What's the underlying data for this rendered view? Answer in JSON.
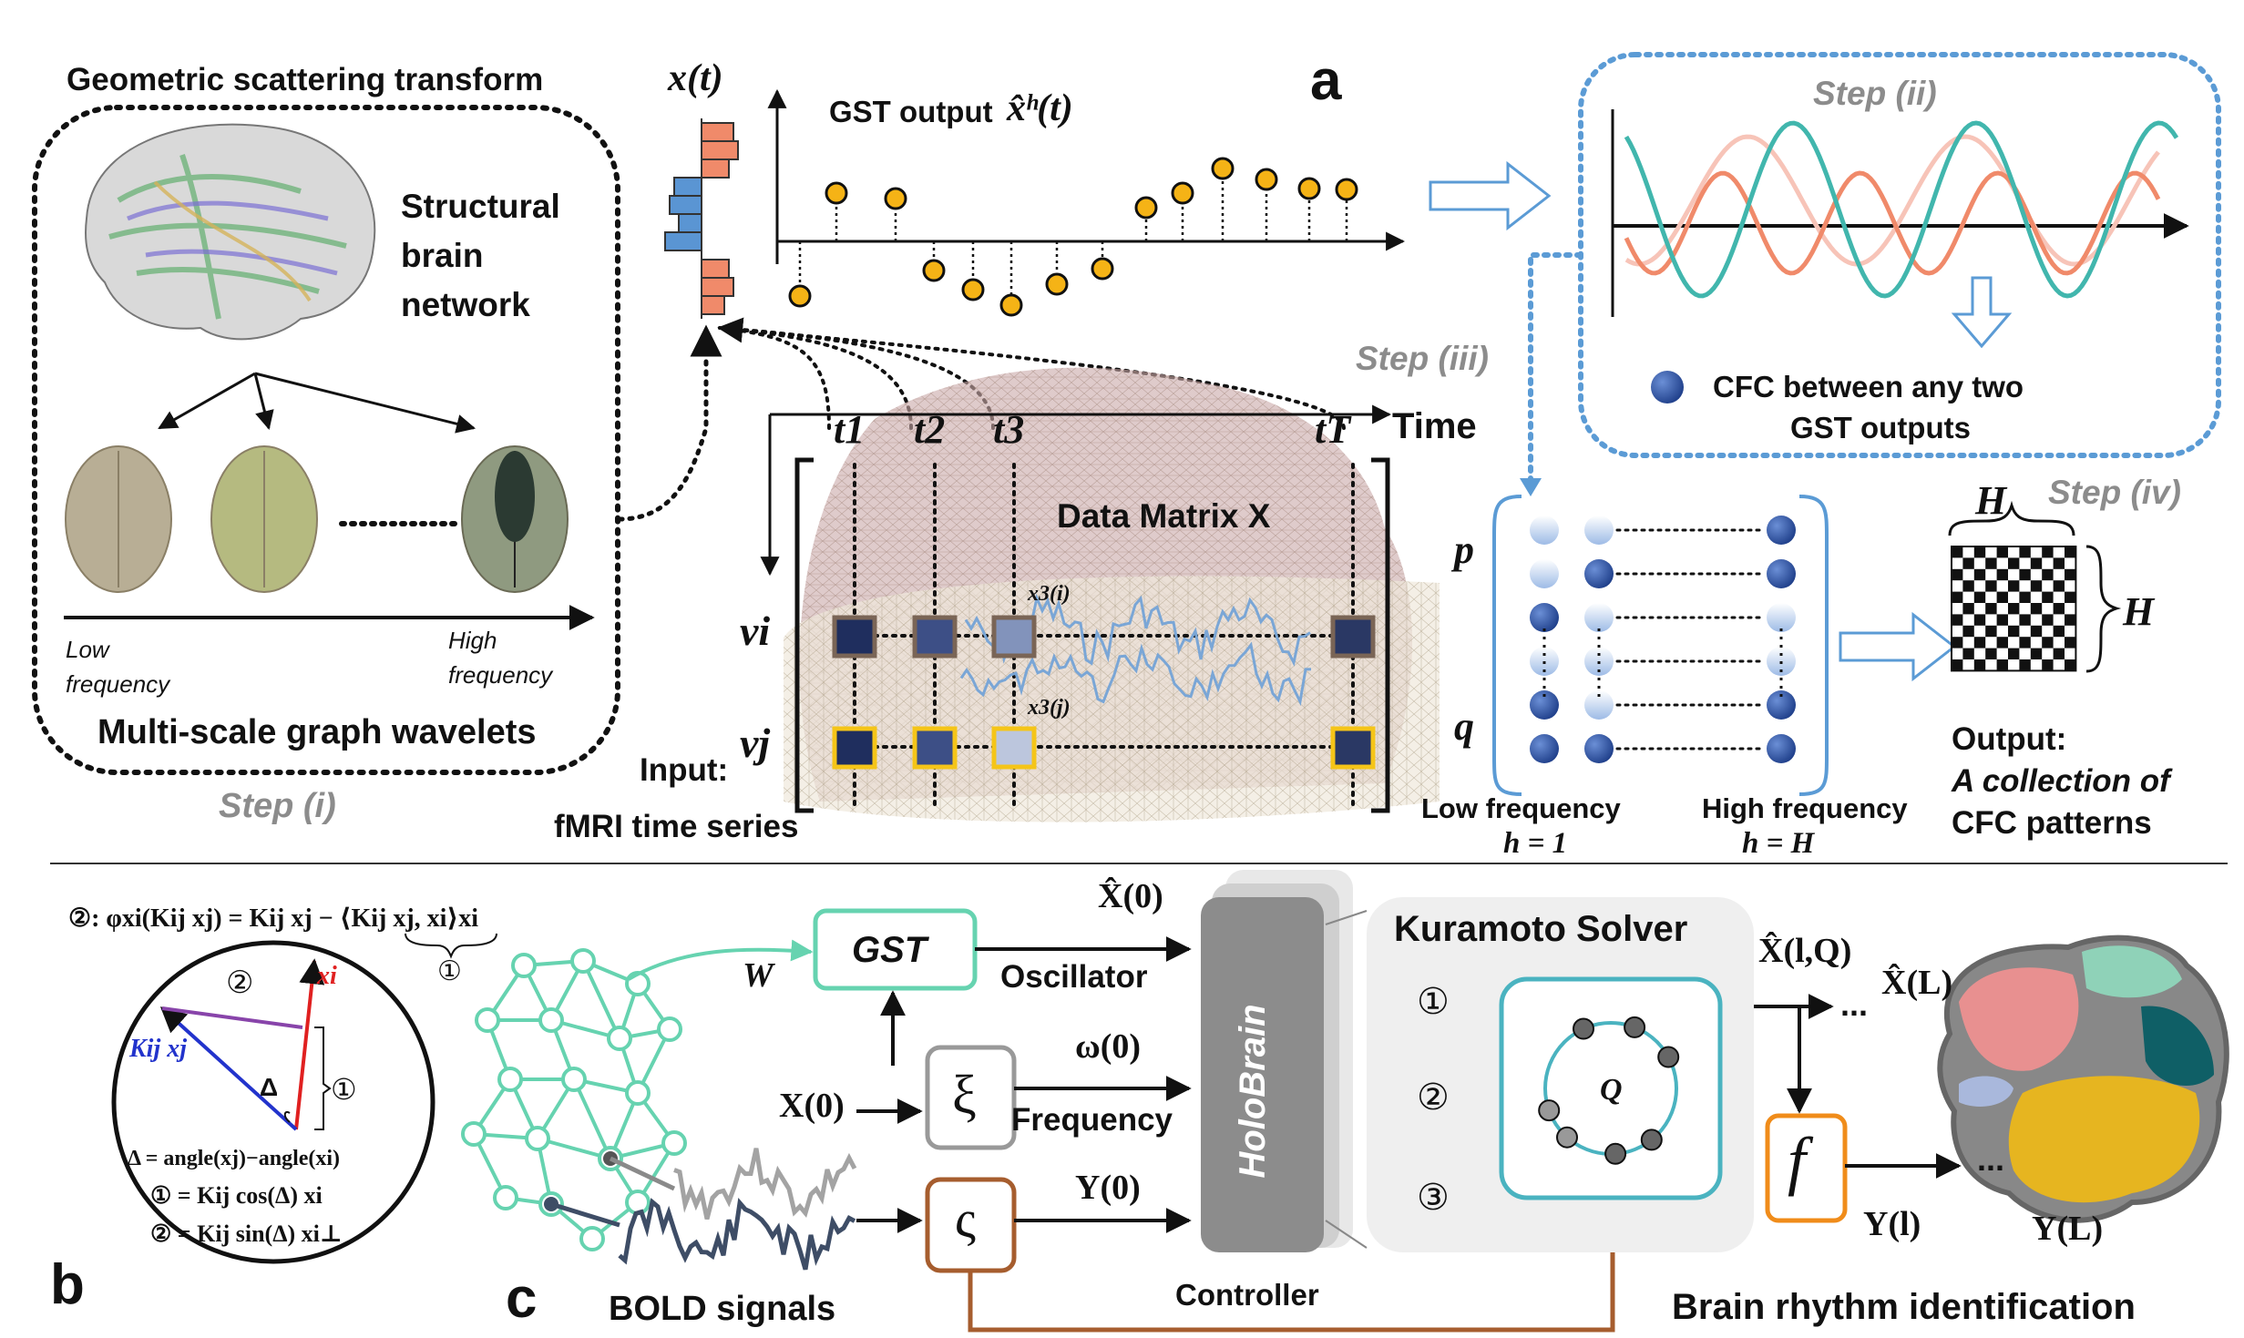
{
  "panel_a": {
    "label": "a",
    "gst_title": "Geometric scattering transform",
    "network_label": [
      "Structural",
      "brain",
      "network"
    ],
    "freq_low": [
      "Low",
      "frequency"
    ],
    "freq_high": [
      "High",
      "frequency"
    ],
    "wavelets_label": "Multi-scale graph wavelets",
    "step_i": "Step (i)",
    "xt_label": "x(t)",
    "gst_output_label": "GST output",
    "gst_output_symbol": "x̂ʰ(t)",
    "time_label": "Time",
    "t_labels": [
      "t1",
      "t2",
      "t3",
      "tT"
    ],
    "data_matrix_label": "Data Matrix X",
    "v_labels": [
      "vi",
      "vj"
    ],
    "x3i_label": "x3(i)",
    "x3j_label": "x3(j)",
    "input_label": [
      "Input:",
      "fMRI time series"
    ],
    "step_iii": "Step (iii)",
    "step_ii": "Step (ii)",
    "cfc_label": [
      "CFC between any two",
      "GST outputs"
    ],
    "pq_labels": [
      "p",
      "q"
    ],
    "low_freq": [
      "Low frequency",
      "h = 1"
    ],
    "high_freq": [
      "High frequency",
      "h = H"
    ],
    "step_iv": "Step (iv)",
    "H_labels": [
      "H",
      "H"
    ],
    "output_label": [
      "Output:",
      "A collection of",
      "CFC patterns"
    ]
  },
  "panel_b": {
    "label": "b",
    "equation": "②: φxi(Kij xj) = Kij xj − ⟨Kij xj, xi⟩xi",
    "under_brace": "①",
    "circle2": "②",
    "circle1": "①",
    "vec_xi": "xi",
    "vec_kx": "Kij xj",
    "delta": "Δ",
    "delta_def": "Δ = angle(xj)−angle(xi)",
    "eq1": "① = Kij cos(Δ) xi",
    "eq2": "② = Kij sin(Δ) xi⊥"
  },
  "panel_c": {
    "label": "c",
    "W_label": "W",
    "gst_box": "GST",
    "xhat0": "X̂(0)",
    "oscillator": "Oscillator",
    "x0": "X(0)",
    "xi_box": "ξ",
    "omega0": "ω(0)",
    "frequency": "Frequency",
    "varsigma_box": "ς",
    "y0": "Y(0)",
    "bold_signals": "BOLD signals",
    "holobrain": "HoloBrain",
    "controller": "Controller",
    "kuramoto": "Kuramoto Solver",
    "steps": [
      "①",
      "②",
      "③"
    ],
    "Q_label": "Q",
    "xhat_lq": "X̂(l,Q)",
    "xhat_L": "X̂(L)",
    "dots": "...",
    "f_box": "f",
    "y_l": "Y(l)",
    "y_L": "Y(L)",
    "brain_rhythm": "Brain rhythm identification"
  },
  "colors": {
    "salmon": "#f08a6a",
    "blue_bar": "#5a95d3",
    "gold": "#f5b316",
    "step_blue": "#5b9bd5",
    "teal": "#66d3b0",
    "kuramoto_teal": "#4ab3c0",
    "brown": "#a65d2e",
    "orange": "#f08c1a",
    "node_blue": "#2f5597"
  },
  "icons": [
    "brain-image",
    "brain-mesh",
    "checkerboard-icon",
    "circle-diagram",
    "graph-network",
    "cortex-parcellation"
  ]
}
